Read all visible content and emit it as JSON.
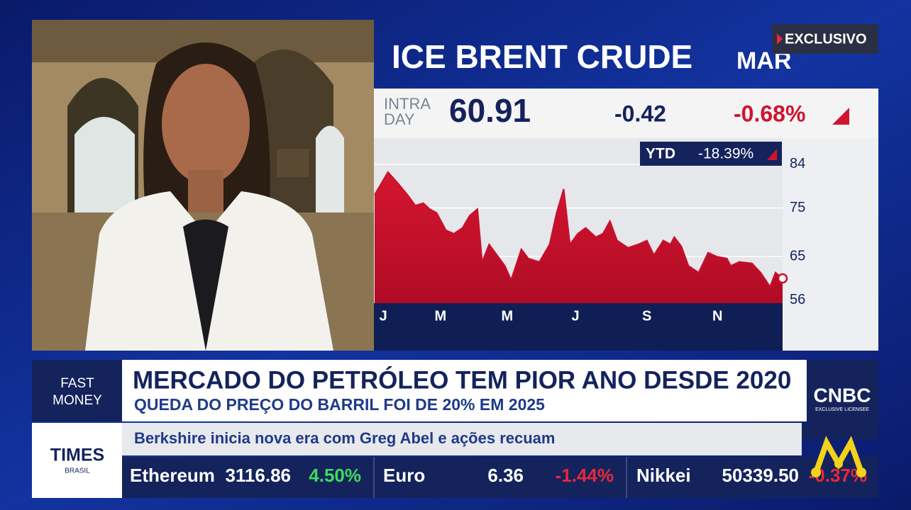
{
  "header": {
    "badge": "EXCLUSIVO"
  },
  "chart_data": {
    "type": "area",
    "title": "ICE BRENT CRUDE",
    "subtitle": "MAR",
    "intraday_label": [
      "INTRA",
      "DAY"
    ],
    "last": "60.91",
    "change": "-0.42",
    "change_pct": "-0.68%",
    "ytd_label": "YTD",
    "ytd": "-18.39%",
    "x": [
      0,
      1.7,
      2.9,
      4.2,
      5.2,
      6.2,
      7,
      7.9,
      9.1,
      10.1,
      11.2,
      12.1,
      13.1,
      13.7,
      14.6,
      15.6,
      16.6,
      17.4,
      18.7,
      19.6,
      21,
      22.3,
      23.2,
      24.1,
      24.9,
      25.9,
      26.9,
      28.2,
      29.1,
      30,
      30.9,
      32.3,
      33.6,
      34.7,
      35.6,
      36.8,
      37.7,
      38.2,
      39.1,
      40,
      41.3,
      42.5,
      43.6,
      44.9,
      45.4,
      46.5,
      48.1,
      49.2,
      50.4,
      51.1,
      52
    ],
    "values": [
      77.7,
      82.4,
      80.2,
      77.7,
      75.5,
      76,
      74.8,
      74,
      70.4,
      69.7,
      70.9,
      73.4,
      74.8,
      63.9,
      67.5,
      65.3,
      63.1,
      60.2,
      66.5,
      64.6,
      63.9,
      67.5,
      74,
      78.9,
      67.5,
      69.7,
      70.9,
      69,
      69.7,
      72.3,
      68.3,
      66.8,
      67.5,
      68.3,
      65.3,
      68.3,
      67.5,
      69,
      67.1,
      63.1,
      61.7,
      65.8,
      65,
      64.6,
      63.1,
      63.9,
      63.6,
      61.7,
      58.8,
      61.7,
      60.5
    ],
    "color": "#c8102e",
    "xlim": [
      0,
      52
    ],
    "xticks": [
      {
        "value": 1.1,
        "label": "J"
      },
      {
        "value": 8.4,
        "label": "M"
      },
      {
        "value": 16.9,
        "label": "M"
      },
      {
        "value": 25.6,
        "label": "J"
      },
      {
        "value": 34.7,
        "label": "S"
      },
      {
        "value": 43.7,
        "label": "N"
      }
    ],
    "ylim": [
      55.4,
      88.8
    ],
    "yticks": [
      84,
      75,
      65,
      56
    ],
    "grid": true
  },
  "lower_third": {
    "show": [
      "FAST",
      "MONEY"
    ],
    "headline": "MERCADO DO PETRÓLEO TEM PIOR ANO DESDE 2020",
    "subhead": "QUEDA DO PREÇO DO BARRIL FOI DE 20% EM 2025",
    "logo": "CNBC",
    "logo_sub": "EXCLUSIVE LICENSEE",
    "crawl": "Berkshire inicia nova era com Greg Abel e ações recuam",
    "network": "TIMES",
    "network_sub": "BRASIL"
  },
  "ticker": [
    {
      "name": "Ethereum",
      "price": "3116.86",
      "change": "4.50%"
    },
    {
      "name": "Euro",
      "price": "6.36",
      "change": "-1.44%"
    },
    {
      "name": "Nikkei",
      "price": "50339.50",
      "change": "-0.37%"
    }
  ]
}
